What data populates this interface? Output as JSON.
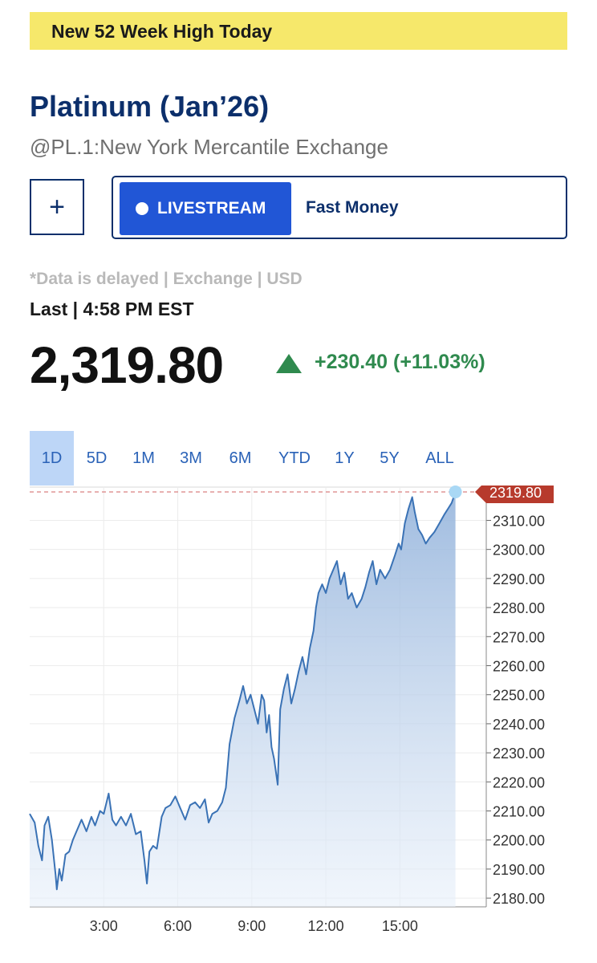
{
  "banner": {
    "text": "New 52 Week High Today"
  },
  "quote": {
    "title": "Platinum (Jan’26)",
    "subtitle": "@PL.1:New York Mercantile Exchange",
    "delayed_note": "*Data is delayed | Exchange | USD",
    "last_label": "Last | 4:58 PM EST",
    "price": "2,319.80",
    "change": "+230.40 (+11.03%)"
  },
  "actions": {
    "add_label": "+",
    "livestream_label": "LIVESTREAM",
    "show_name": "Fast Money"
  },
  "range_tabs": [
    "1D",
    "5D",
    "1M",
    "3M",
    "6M",
    "YTD",
    "1Y",
    "5Y",
    "ALL"
  ],
  "active_tab": "1D",
  "icons": {
    "add": "plus-icon",
    "live": "live-dot-icon",
    "change": "up-triangle-icon"
  },
  "colors": {
    "navy": "#0c2f6b",
    "accent": "#2156d6",
    "positive": "#2f8a4e",
    "last_marker": "#c0392b",
    "banner": "#f6e86b"
  },
  "chart_data": {
    "type": "area",
    "x_label": "",
    "y_label": "",
    "x_ticks": [
      "3:00",
      "6:00",
      "9:00",
      "12:00",
      "15:00"
    ],
    "x_tick_hours": [
      3,
      6,
      9,
      12,
      15
    ],
    "y_ticks": [
      "2180.00",
      "2190.00",
      "2200.00",
      "2210.00",
      "2220.00",
      "2230.00",
      "2240.00",
      "2250.00",
      "2260.00",
      "2270.00",
      "2280.00",
      "2290.00",
      "2300.00",
      "2310.00"
    ],
    "ylim": [
      2177,
      2322
    ],
    "xlim_hours": [
      0,
      18.5
    ],
    "last_value": 2319.8,
    "last_value_label": "2319.80",
    "series": [
      {
        "points": [
          [
            0.0,
            2209
          ],
          [
            0.2,
            2206
          ],
          [
            0.35,
            2198
          ],
          [
            0.5,
            2193
          ],
          [
            0.6,
            2205
          ],
          [
            0.75,
            2208
          ],
          [
            0.9,
            2200
          ],
          [
            1.05,
            2188
          ],
          [
            1.1,
            2183
          ],
          [
            1.2,
            2190
          ],
          [
            1.3,
            2186
          ],
          [
            1.45,
            2195
          ],
          [
            1.6,
            2196
          ],
          [
            1.75,
            2200
          ],
          [
            1.9,
            2203
          ],
          [
            2.1,
            2207
          ],
          [
            2.3,
            2203
          ],
          [
            2.5,
            2208
          ],
          [
            2.65,
            2205
          ],
          [
            2.85,
            2210
          ],
          [
            3.0,
            2209
          ],
          [
            3.2,
            2216
          ],
          [
            3.35,
            2207
          ],
          [
            3.5,
            2205
          ],
          [
            3.7,
            2208
          ],
          [
            3.9,
            2205
          ],
          [
            4.1,
            2209
          ],
          [
            4.3,
            2202
          ],
          [
            4.5,
            2203
          ],
          [
            4.65,
            2193
          ],
          [
            4.75,
            2185
          ],
          [
            4.85,
            2196
          ],
          [
            5.0,
            2198
          ],
          [
            5.15,
            2197
          ],
          [
            5.35,
            2208
          ],
          [
            5.5,
            2211
          ],
          [
            5.7,
            2212
          ],
          [
            5.9,
            2215
          ],
          [
            6.1,
            2211
          ],
          [
            6.3,
            2207
          ],
          [
            6.5,
            2212
          ],
          [
            6.7,
            2213
          ],
          [
            6.9,
            2211
          ],
          [
            7.1,
            2214
          ],
          [
            7.25,
            2206
          ],
          [
            7.4,
            2209
          ],
          [
            7.6,
            2210
          ],
          [
            7.8,
            2213
          ],
          [
            7.95,
            2218
          ],
          [
            8.1,
            2233
          ],
          [
            8.3,
            2242
          ],
          [
            8.5,
            2248
          ],
          [
            8.65,
            2253
          ],
          [
            8.8,
            2247
          ],
          [
            8.95,
            2250
          ],
          [
            9.1,
            2245
          ],
          [
            9.25,
            2240
          ],
          [
            9.4,
            2250
          ],
          [
            9.5,
            2248
          ],
          [
            9.6,
            2237
          ],
          [
            9.7,
            2243
          ],
          [
            9.8,
            2232
          ],
          [
            9.9,
            2228
          ],
          [
            10.0,
            2222
          ],
          [
            10.05,
            2219
          ],
          [
            10.15,
            2245
          ],
          [
            10.3,
            2252
          ],
          [
            10.45,
            2257
          ],
          [
            10.6,
            2247
          ],
          [
            10.75,
            2252
          ],
          [
            10.9,
            2258
          ],
          [
            11.05,
            2263
          ],
          [
            11.2,
            2257
          ],
          [
            11.35,
            2266
          ],
          [
            11.5,
            2272
          ],
          [
            11.6,
            2280
          ],
          [
            11.7,
            2285
          ],
          [
            11.85,
            2288
          ],
          [
            12.0,
            2285
          ],
          [
            12.15,
            2290
          ],
          [
            12.3,
            2293
          ],
          [
            12.45,
            2296
          ],
          [
            12.6,
            2288
          ],
          [
            12.75,
            2292
          ],
          [
            12.9,
            2283
          ],
          [
            13.05,
            2285
          ],
          [
            13.25,
            2280
          ],
          [
            13.45,
            2283
          ],
          [
            13.6,
            2287
          ],
          [
            13.75,
            2292
          ],
          [
            13.9,
            2296
          ],
          [
            14.05,
            2288
          ],
          [
            14.2,
            2293
          ],
          [
            14.4,
            2290
          ],
          [
            14.6,
            2293
          ],
          [
            14.8,
            2298
          ],
          [
            14.95,
            2302
          ],
          [
            15.05,
            2300
          ],
          [
            15.2,
            2309
          ],
          [
            15.35,
            2314
          ],
          [
            15.5,
            2318
          ],
          [
            15.6,
            2313
          ],
          [
            15.75,
            2307
          ],
          [
            15.9,
            2305
          ],
          [
            16.05,
            2302
          ],
          [
            16.2,
            2304
          ],
          [
            16.4,
            2306
          ],
          [
            16.6,
            2309
          ],
          [
            16.8,
            2312
          ],
          [
            16.95,
            2314
          ],
          [
            17.1,
            2316
          ],
          [
            17.25,
            2319.8
          ]
        ]
      }
    ]
  }
}
